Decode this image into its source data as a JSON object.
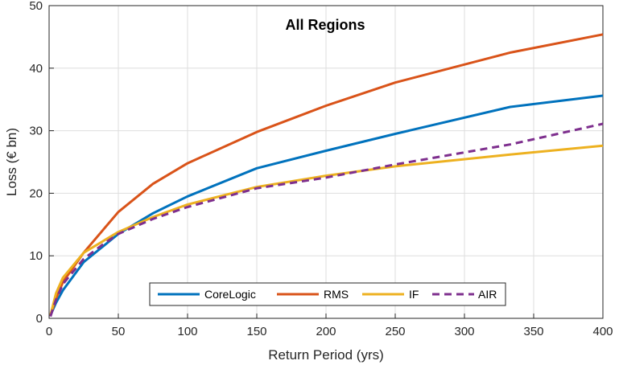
{
  "chart_data": {
    "type": "line",
    "title": "All Regions",
    "xlabel": "Return Period (yrs)",
    "ylabel": "Loss (€ bn)",
    "xlim": [
      0,
      400
    ],
    "ylim": [
      0,
      50
    ],
    "xticks": [
      0,
      50,
      100,
      150,
      200,
      250,
      300,
      350,
      400
    ],
    "yticks": [
      0,
      10,
      20,
      30,
      40,
      50
    ],
    "grid": true,
    "legend": "bottom-center",
    "series": [
      {
        "name": "CoreLogic",
        "color": "#0072BD",
        "style": "solid",
        "x": [
          1,
          5,
          10,
          25,
          50,
          75,
          100,
          150,
          200,
          250,
          333,
          400
        ],
        "y": [
          0.5,
          2.5,
          4.5,
          9,
          13.5,
          16.8,
          19.5,
          24,
          26.8,
          29.5,
          33.8,
          35.6
        ]
      },
      {
        "name": "RMS",
        "color": "#D95319",
        "style": "solid",
        "x": [
          1,
          5,
          10,
          25,
          50,
          75,
          100,
          150,
          200,
          250,
          333,
          400
        ],
        "y": [
          0.5,
          3.2,
          5.8,
          10.5,
          17,
          21.5,
          24.8,
          29.8,
          34,
          37.7,
          42.5,
          45.4
        ]
      },
      {
        "name": "IF",
        "color": "#EDB120",
        "style": "solid",
        "x": [
          1,
          5,
          10,
          25,
          50,
          75,
          100,
          150,
          200,
          250,
          333,
          400
        ],
        "y": [
          0.5,
          4,
          6.5,
          10.5,
          13.8,
          16.2,
          18.2,
          21,
          22.8,
          24.3,
          26.2,
          27.6
        ]
      },
      {
        "name": "AIR",
        "color": "#7E2F8E",
        "style": "dashed",
        "x": [
          1,
          5,
          10,
          25,
          40,
          50,
          75,
          100,
          150,
          200,
          250,
          333,
          400
        ],
        "y": [
          0.3,
          3,
          5.5,
          9.5,
          12,
          13.5,
          15.9,
          17.8,
          20.8,
          22.5,
          24.6,
          27.8,
          31.1
        ]
      }
    ]
  }
}
